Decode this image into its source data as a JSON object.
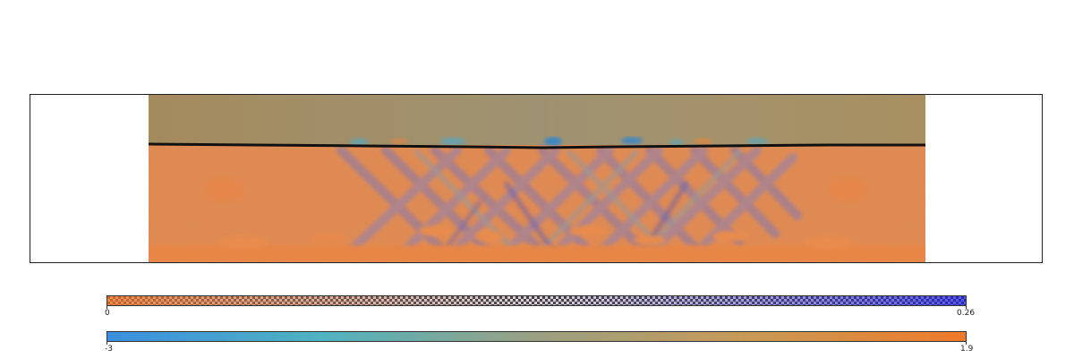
{
  "colorbars": [
    {
      "min_label": "0",
      "max_label": "0.26",
      "min": 0,
      "max": 0.26,
      "style": "checker-alpha",
      "color_low": "#e8762f",
      "color_high": "#2c2ce0"
    },
    {
      "min_label": "-3",
      "max_label": "1.9",
      "min": -3,
      "max": 1.9,
      "style": "gradient",
      "stops": [
        "#3a8fe0",
        "#4fb3c0",
        "#9aa082",
        "#c89a55",
        "#f07a2a"
      ]
    }
  ],
  "colors": {
    "upper_layer": "#a88e5e",
    "lower_layer": "#e5823a",
    "interface": "#111111",
    "band_blue": "#6d6ab8",
    "band_teal": "#4fa8c8"
  }
}
